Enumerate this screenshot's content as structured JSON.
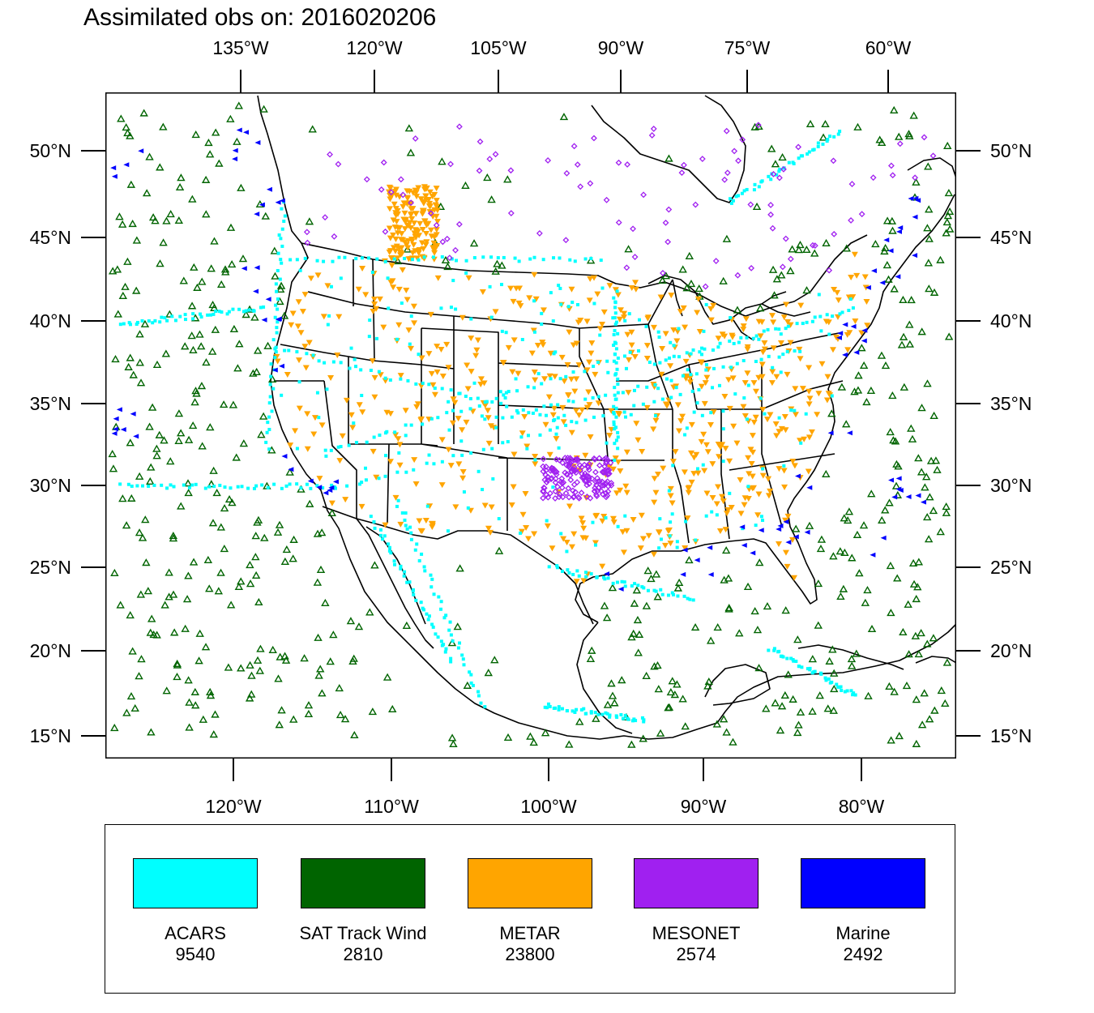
{
  "title": "Assimilated obs on: 2016020206",
  "top_lon_ticks": [
    "135°W",
    "120°W",
    "105°W",
    "90°W",
    "75°W",
    "60°W"
  ],
  "bottom_lon_ticks": [
    "120°W",
    "110°W",
    "100°W",
    "90°W",
    "80°W"
  ],
  "lat_ticks": [
    "50°N",
    "45°N",
    "40°N",
    "35°N",
    "30°N",
    "25°N",
    "20°N",
    "15°N"
  ],
  "legend": [
    {
      "name": "ACARS",
      "count": "9540",
      "color": "#00ffff",
      "marker": "square"
    },
    {
      "name": "SAT Track Wind",
      "count": "2810",
      "color": "#006400",
      "marker": "triangle"
    },
    {
      "name": "METAR",
      "count": "23800",
      "color": "#ffa500",
      "marker": "inverted-triangle"
    },
    {
      "name": "MESONET",
      "count": "2574",
      "color": "#a020f0",
      "marker": "diamond"
    },
    {
      "name": "Marine",
      "count": "2492",
      "color": "#0000ff",
      "marker": "left-triangle"
    }
  ]
}
